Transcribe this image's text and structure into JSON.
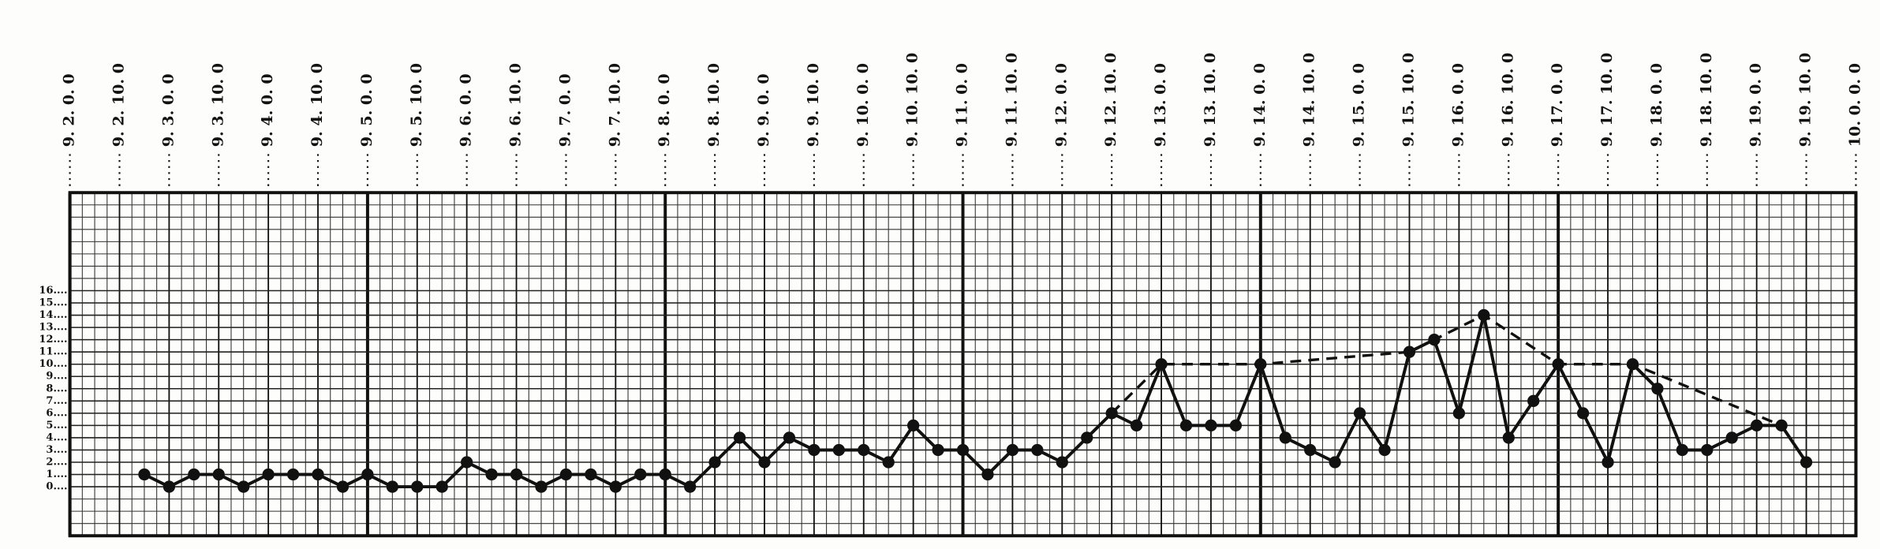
{
  "chart_data": {
    "type": "line",
    "xlim": [
      0,
      72
    ],
    "ylim": [
      -4,
      24
    ],
    "grid": true,
    "xticks": [
      {
        "value": 0,
        "label": "9. 2. 0. 0"
      },
      {
        "value": 2,
        "label": "9. 2. 10. 0"
      },
      {
        "value": 4,
        "label": "9. 3. 0. 0"
      },
      {
        "value": 6,
        "label": "9. 3. 10. 0"
      },
      {
        "value": 8,
        "label": "9. 4. 0. 0"
      },
      {
        "value": 10,
        "label": "9. 4. 10. 0"
      },
      {
        "value": 12,
        "label": "9. 5. 0. 0"
      },
      {
        "value": 14,
        "label": "9. 5. 10. 0"
      },
      {
        "value": 16,
        "label": "9. 6. 0. 0"
      },
      {
        "value": 18,
        "label": "9. 6. 10. 0"
      },
      {
        "value": 20,
        "label": "9. 7. 0. 0"
      },
      {
        "value": 22,
        "label": "9. 7. 10. 0"
      },
      {
        "value": 24,
        "label": "9. 8. 0. 0"
      },
      {
        "value": 26,
        "label": "9. 8. 10. 0"
      },
      {
        "value": 28,
        "label": "9. 9. 0. 0"
      },
      {
        "value": 30,
        "label": "9. 9. 10. 0"
      },
      {
        "value": 32,
        "label": "9. 10. 0. 0"
      },
      {
        "value": 34,
        "label": "9. 10. 10. 0"
      },
      {
        "value": 36,
        "label": "9. 11. 0. 0"
      },
      {
        "value": 38,
        "label": "9. 11. 10. 0"
      },
      {
        "value": 40,
        "label": "9. 12. 0. 0"
      },
      {
        "value": 42,
        "label": "9. 12. 10. 0"
      },
      {
        "value": 44,
        "label": "9. 13. 0. 0"
      },
      {
        "value": 46,
        "label": "9. 13. 10. 0"
      },
      {
        "value": 48,
        "label": "9. 14. 0. 0"
      },
      {
        "value": 50,
        "label": "9. 14. 10. 0"
      },
      {
        "value": 52,
        "label": "9. 15. 0. 0"
      },
      {
        "value": 54,
        "label": "9. 15. 10. 0"
      },
      {
        "value": 56,
        "label": "9. 16. 0. 0"
      },
      {
        "value": 58,
        "label": "9. 16. 10. 0"
      },
      {
        "value": 60,
        "label": "9. 17. 0. 0"
      },
      {
        "value": 62,
        "label": "9. 17. 10. 0"
      },
      {
        "value": 64,
        "label": "9. 18. 0. 0"
      },
      {
        "value": 66,
        "label": "9. 18. 10. 0"
      },
      {
        "value": 68,
        "label": "9. 19. 0. 0"
      },
      {
        "value": 70,
        "label": "9. 19. 10. 0"
      },
      {
        "value": 72,
        "label": "10. 0. 0. 0"
      }
    ],
    "yticks": [
      {
        "value": 0,
        "label": "0...."
      },
      {
        "value": 1,
        "label": "1...."
      },
      {
        "value": 2,
        "label": "2...."
      },
      {
        "value": 3,
        "label": "3...."
      },
      {
        "value": 4,
        "label": "4...."
      },
      {
        "value": 5,
        "label": "5...."
      },
      {
        "value": 6,
        "label": "6...."
      },
      {
        "value": 7,
        "label": "7...."
      },
      {
        "value": 8,
        "label": "8...."
      },
      {
        "value": 9,
        "label": "9...."
      },
      {
        "value": 10,
        "label": "10...."
      },
      {
        "value": 11,
        "label": "11...."
      },
      {
        "value": 12,
        "label": "12...."
      },
      {
        "value": 13,
        "label": "13...."
      },
      {
        "value": 14,
        "label": "14...."
      },
      {
        "value": 15,
        "label": "15...."
      },
      {
        "value": 16,
        "label": "16...."
      }
    ],
    "series": [
      {
        "color": "#111111",
        "style": "solid",
        "markers": true,
        "x": [
          3,
          4,
          5,
          6,
          7,
          8,
          9,
          10,
          11,
          12,
          13,
          14,
          15,
          16,
          17,
          18,
          19,
          20,
          21,
          22,
          23,
          24,
          25,
          26,
          27,
          28,
          29,
          30,
          31,
          32,
          33,
          34,
          35,
          36,
          37,
          38,
          39,
          40,
          41,
          42,
          43,
          44,
          45,
          46,
          47,
          48,
          49,
          50,
          51,
          52,
          53,
          54,
          55,
          56,
          57,
          58,
          59,
          60,
          61,
          62,
          63,
          64,
          65,
          66,
          67,
          68,
          69,
          70
        ],
        "values": [
          1,
          0,
          1,
          1,
          0,
          1,
          1,
          1,
          0,
          1,
          0,
          0,
          0,
          2,
          1,
          1,
          0,
          1,
          1,
          0,
          1,
          1,
          0,
          2,
          4,
          2,
          4,
          3,
          3,
          3,
          2,
          5,
          3,
          3,
          1,
          3,
          3,
          2,
          4,
          6,
          5,
          10,
          5,
          5,
          5,
          10,
          4,
          3,
          2,
          6,
          3,
          11,
          12,
          6,
          14,
          4,
          7,
          10,
          6,
          2,
          10,
          8,
          3,
          3,
          4,
          5,
          5,
          2
        ]
      },
      {
        "color": "#111111",
        "style": "dashed",
        "markers": false,
        "x": [
          42,
          44,
          48,
          54,
          57,
          60,
          63,
          69
        ],
        "values": [
          6,
          10,
          10,
          11,
          14,
          10,
          10,
          5
        ]
      }
    ]
  }
}
